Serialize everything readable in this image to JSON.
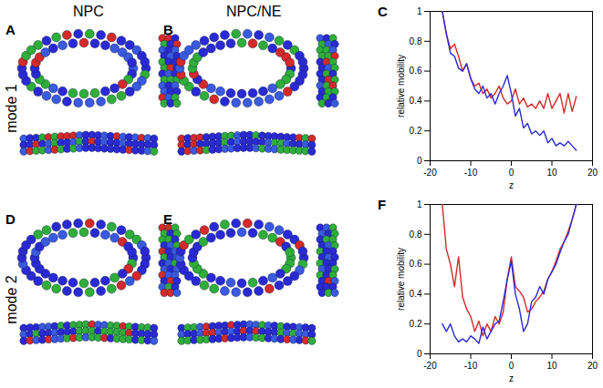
{
  "figure": {
    "columns": [
      "NPC",
      "NPC/NE"
    ],
    "rows": [
      "mode 1",
      "mode 2"
    ],
    "panels": [
      "A",
      "B",
      "D",
      "E"
    ]
  },
  "chart_data": [
    {
      "type": "line",
      "title": "C",
      "xlabel": "z",
      "ylabel": "relative mobility",
      "x": [
        -17,
        -16,
        -15,
        -14,
        -13,
        -12,
        -11,
        -10,
        -9,
        -8,
        -7,
        -6,
        -5,
        -4,
        -3,
        -2,
        -1,
        0,
        1,
        2,
        3,
        4,
        5,
        6,
        7,
        8,
        9,
        10,
        11,
        12,
        13,
        14,
        15,
        16
      ],
      "series": [
        {
          "color": "#d42a2a",
          "values": [
            1.0,
            0.85,
            0.75,
            0.78,
            0.7,
            0.6,
            0.65,
            0.55,
            0.5,
            0.52,
            0.45,
            0.48,
            0.42,
            0.45,
            0.5,
            0.42,
            0.38,
            0.4,
            0.48,
            0.38,
            0.42,
            0.36,
            0.38,
            0.35,
            0.4,
            0.35,
            0.45,
            0.35,
            0.4,
            0.45,
            0.32,
            0.45,
            0.33,
            0.43
          ]
        },
        {
          "color": "#2a2ad4",
          "values": [
            1.0,
            0.85,
            0.72,
            0.7,
            0.62,
            0.6,
            0.65,
            0.55,
            0.48,
            0.45,
            0.5,
            0.42,
            0.45,
            0.38,
            0.45,
            0.5,
            0.57,
            0.45,
            0.3,
            0.35,
            0.22,
            0.25,
            0.18,
            0.2,
            0.17,
            0.2,
            0.12,
            0.15,
            0.1,
            0.12,
            0.1,
            0.13,
            0.1,
            0.07
          ]
        }
      ],
      "xlim": [
        -20,
        20
      ],
      "xticks": [
        -20,
        -10,
        0,
        10,
        20
      ],
      "ylim": [
        0,
        1
      ],
      "yticks": [
        0,
        0.2,
        0.4,
        0.6,
        0.8,
        1
      ]
    },
    {
      "type": "line",
      "title": "F",
      "xlabel": "z",
      "ylabel": "relative mobility",
      "x": [
        -17,
        -16,
        -15,
        -14,
        -13,
        -12,
        -11,
        -10,
        -9,
        -8,
        -7,
        -6,
        -5,
        -4,
        -3,
        -2,
        -1,
        0,
        1,
        2,
        3,
        4,
        5,
        6,
        7,
        8,
        9,
        10,
        11,
        12,
        13,
        14,
        15,
        16
      ],
      "series": [
        {
          "color": "#d42a2a",
          "values": [
            1.0,
            0.7,
            0.6,
            0.45,
            0.65,
            0.38,
            0.3,
            0.25,
            0.15,
            0.22,
            0.12,
            0.2,
            0.15,
            0.25,
            0.2,
            0.28,
            0.5,
            0.65,
            0.45,
            0.42,
            0.38,
            0.28,
            0.3,
            0.35,
            0.38,
            0.42,
            0.5,
            0.55,
            0.62,
            0.7,
            0.75,
            0.82,
            0.9,
            1.0
          ]
        },
        {
          "color": "#2a2ad4",
          "values": [
            0.2,
            0.15,
            0.2,
            0.12,
            0.08,
            0.1,
            0.08,
            0.12,
            0.1,
            0.07,
            0.18,
            0.1,
            0.15,
            0.2,
            0.22,
            0.35,
            0.5,
            0.62,
            0.4,
            0.3,
            0.15,
            0.2,
            0.35,
            0.38,
            0.45,
            0.4,
            0.5,
            0.55,
            0.6,
            0.68,
            0.75,
            0.8,
            0.9,
            1.0
          ]
        }
      ],
      "xlim": [
        -20,
        20
      ],
      "xticks": [
        -20,
        -10,
        0,
        10,
        20
      ],
      "ylim": [
        0,
        1
      ],
      "yticks": [
        0,
        0.2,
        0.4,
        0.6,
        0.8,
        1
      ]
    }
  ]
}
